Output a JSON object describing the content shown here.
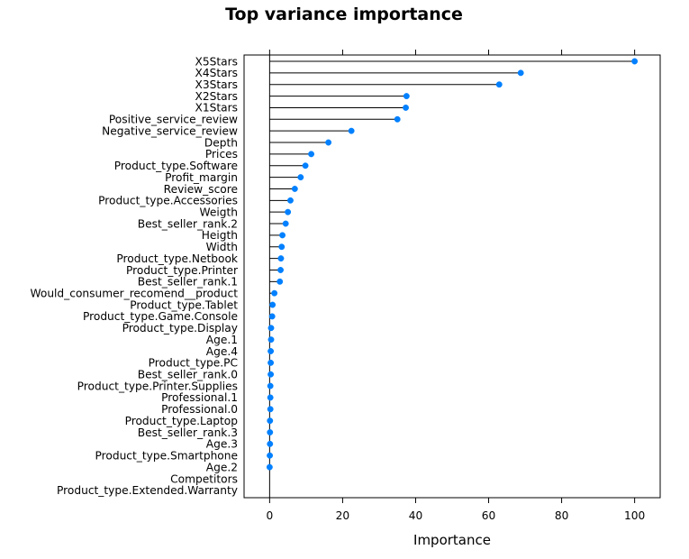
{
  "chart_data": {
    "type": "dotplot",
    "title": "Top variance importance",
    "xlabel": "Importance",
    "ylabel": "",
    "xlim": [
      -7,
      107
    ],
    "xticks": [
      0,
      20,
      40,
      60,
      80,
      100
    ],
    "grid": false,
    "colors": {
      "point": "#0080ff",
      "line": "#000000",
      "frame": "#000000"
    },
    "categories": [
      "X5Stars",
      "X4Stars",
      "X3Stars",
      "X2Stars",
      "X1Stars",
      "Positive_service_review",
      "Negative_service_review",
      "Depth",
      "Prices",
      "Product_type.Software",
      "Profit_margin",
      "Review_score",
      "Product_type.Accessories",
      "Weigth",
      "Best_seller_rank.2",
      "Heigth",
      "Width",
      "Product_type.Netbook",
      "Product_type.Printer",
      "Best_seller_rank.1",
      "Would_consumer_recomend__product",
      "Product_type.Tablet",
      "Product_type.Game.Console",
      "Product_type.Display",
      "Age.1",
      "Age.4",
      "Product_type.PC",
      "Best_seller_rank.0",
      "Product_type.Printer.Supplies",
      "Professional.1",
      "Professional.0",
      "Product_type.Laptop",
      "Best_seller_rank.3",
      "Age.3",
      "Product_type.Smartphone",
      "Age.2",
      "Competitors",
      "Product_type.Extended.Warranty"
    ],
    "values": [
      100,
      68.8,
      62.9,
      37.5,
      37.3,
      35.0,
      22.4,
      16.1,
      11.4,
      9.8,
      8.5,
      6.9,
      5.7,
      5.0,
      4.4,
      3.5,
      3.3,
      3.1,
      3.0,
      2.8,
      1.3,
      0.8,
      0.7,
      0.4,
      0.4,
      0.3,
      0.3,
      0.3,
      0.2,
      0.2,
      0.2,
      0.1,
      0.1,
      0.1,
      0.05,
      0.0,
      null,
      null
    ]
  }
}
